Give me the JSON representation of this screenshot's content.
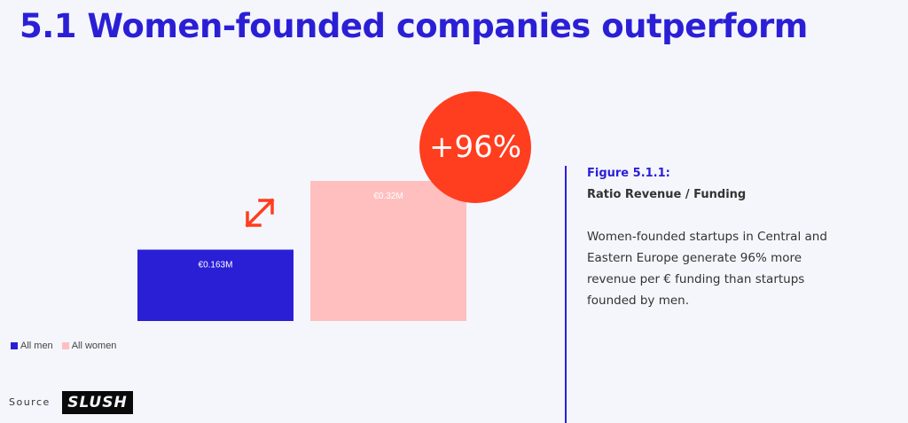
{
  "title": "5.1 Women-founded companies outperform",
  "badge": "+96%",
  "colors": {
    "accent": "#2b1fd6",
    "women": "#ffbfbf",
    "men": "#2b1fd6",
    "badge": "#ff3d1f",
    "arrow": "#ff3d1f"
  },
  "chart_data": {
    "type": "bar",
    "categories": [
      "All men",
      "All women"
    ],
    "values": [
      0.163,
      0.32
    ],
    "value_labels": [
      "€0.163M",
      "€0.32M"
    ],
    "colors": [
      "#2b1fd6",
      "#ffbfbf"
    ],
    "title": "",
    "xlabel": "",
    "ylabel": "",
    "grid": false,
    "legend": "bottom-left"
  },
  "legend": [
    {
      "label": "All men",
      "color": "#2b1fd6"
    },
    {
      "label": "All women",
      "color": "#ffbfbf"
    }
  ],
  "source_label": "Source",
  "logo_text": "SLUSH",
  "figure": {
    "label": "Figure 5.1.1:",
    "title": "Ratio Revenue / Funding",
    "description": "Women-founded startups in Central and Eastern Europe generate 96% more revenue per € funding than startups founded by men."
  }
}
